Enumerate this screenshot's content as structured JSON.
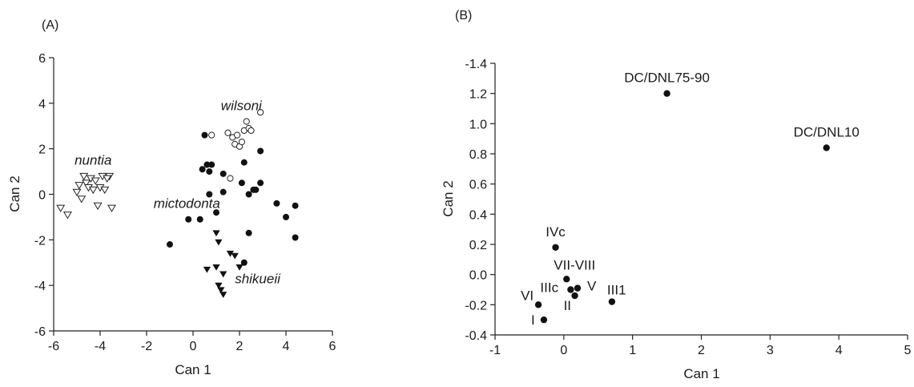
{
  "chart_data": [
    {
      "panel": "(A)",
      "type": "scatter",
      "xlabel": "Can 1",
      "ylabel": "Can 2",
      "xlim": [
        -6,
        6
      ],
      "ylim": [
        -6,
        6
      ],
      "xticks": [
        "-6",
        "-4",
        "-2",
        "0",
        "2",
        "4",
        "6"
      ],
      "yticks": [
        "6",
        "4",
        "2",
        "0",
        "-2",
        "-4",
        "-6"
      ],
      "grid": false,
      "legend": "none",
      "annotations": [
        {
          "text": "nuntia",
          "x": -5.1,
          "y": 1.3
        },
        {
          "text": "wilsoni",
          "x": 1.2,
          "y": 3.7
        },
        {
          "text": "mictodonta",
          "x": -1.7,
          "y": -0.6
        },
        {
          "text": "shikueii",
          "x": 1.8,
          "y": -3.9
        }
      ],
      "series": [
        {
          "marker": "open-triangle-down",
          "points": [
            [
              -5.7,
              -0.6
            ],
            [
              -5.4,
              -0.9
            ],
            [
              -4.8,
              -0.2
            ],
            [
              -4.7,
              0.8
            ],
            [
              -4.6,
              0.5
            ],
            [
              -4.5,
              0.3
            ],
            [
              -4.4,
              0.7
            ],
            [
              -4.3,
              0.2
            ],
            [
              -4.2,
              0.6
            ],
            [
              -4.1,
              -0.5
            ],
            [
              -4.0,
              0.3
            ],
            [
              -3.9,
              0.8
            ],
            [
              -3.8,
              0.2
            ],
            [
              -3.6,
              0.8
            ],
            [
              -3.5,
              -0.6
            ],
            [
              -3.7,
              0.7
            ],
            [
              -4.9,
              0.4
            ],
            [
              -5.0,
              0.1
            ]
          ]
        },
        {
          "marker": "open-circle",
          "points": [
            [
              0.8,
              2.6
            ],
            [
              1.5,
              2.7
            ],
            [
              1.7,
              2.5
            ],
            [
              1.8,
              2.2
            ],
            [
              1.9,
              2.6
            ],
            [
              2.0,
              2.1
            ],
            [
              2.1,
              2.3
            ],
            [
              2.2,
              2.8
            ],
            [
              2.3,
              3.2
            ],
            [
              2.4,
              2.9
            ],
            [
              2.5,
              2.8
            ],
            [
              2.9,
              3.6
            ],
            [
              1.6,
              0.7
            ]
          ]
        },
        {
          "marker": "filled-circle",
          "points": [
            [
              0.5,
              2.6
            ],
            [
              2.9,
              1.9
            ],
            [
              0.4,
              1.1
            ],
            [
              0.6,
              1.3
            ],
            [
              0.8,
              1.3
            ],
            [
              0.7,
              1.0
            ],
            [
              2.2,
              1.4
            ],
            [
              1.3,
              0.9
            ],
            [
              0.7,
              0.0
            ],
            [
              1.3,
              0.1
            ],
            [
              2.6,
              0.2
            ],
            [
              2.4,
              0.0
            ],
            [
              2.9,
              0.5
            ],
            [
              2.1,
              0.5
            ],
            [
              -0.2,
              -1.1
            ],
            [
              0.3,
              -1.1
            ],
            [
              1.0,
              -0.8
            ],
            [
              2.4,
              -1.7
            ],
            [
              3.6,
              -0.4
            ],
            [
              4.0,
              -1.0
            ],
            [
              4.4,
              -0.5
            ],
            [
              4.4,
              -1.9
            ],
            [
              -1.0,
              -2.2
            ],
            [
              2.2,
              -3.0
            ],
            [
              2.7,
              0.2
            ]
          ]
        },
        {
          "marker": "filled-triangle-down",
          "points": [
            [
              1.0,
              -1.7
            ],
            [
              1.1,
              -2.1
            ],
            [
              0.6,
              -3.3
            ],
            [
              1.0,
              -3.2
            ],
            [
              1.3,
              -3.5
            ],
            [
              1.6,
              -2.6
            ],
            [
              1.8,
              -2.7
            ],
            [
              2.0,
              -3.2
            ],
            [
              1.2,
              -4.2
            ],
            [
              1.3,
              -4.4
            ],
            [
              1.1,
              -4.0
            ]
          ]
        }
      ]
    },
    {
      "panel": "(B)",
      "type": "scatter",
      "xlabel": "Can 1",
      "ylabel": "Can 2",
      "xlim": [
        -1,
        5
      ],
      "ylim": [
        -0.4,
        1.4
      ],
      "y_axis_note": "top tick printed as -1.4",
      "xticks": [
        "-1",
        "0",
        "1",
        "2",
        "3",
        "4",
        "5"
      ],
      "yticks": [
        "-1.4",
        "1.2",
        "1.0",
        "0.8",
        "0.6",
        "0.4",
        "0.2",
        "0.0",
        "-0.2",
        "-0.4"
      ],
      "grid": false,
      "legend": "none",
      "points": [
        {
          "label": "DC/DNL75-90",
          "x": 1.5,
          "y": 1.2
        },
        {
          "label": "DC/DNL10",
          "x": 3.82,
          "y": 0.84
        },
        {
          "label": "IVc",
          "x": -0.12,
          "y": 0.18
        },
        {
          "label": "VII-VIII",
          "x": 0.04,
          "y": -0.03
        },
        {
          "label": "IIIc",
          "x": 0.1,
          "y": -0.1
        },
        {
          "label": "V",
          "x": 0.2,
          "y": -0.09
        },
        {
          "label": "II",
          "x": 0.16,
          "y": -0.14
        },
        {
          "label": "VI",
          "x": -0.37,
          "y": -0.2
        },
        {
          "label": "I",
          "x": -0.29,
          "y": -0.3
        },
        {
          "label": "III1",
          "x": 0.7,
          "y": -0.18
        }
      ]
    }
  ]
}
